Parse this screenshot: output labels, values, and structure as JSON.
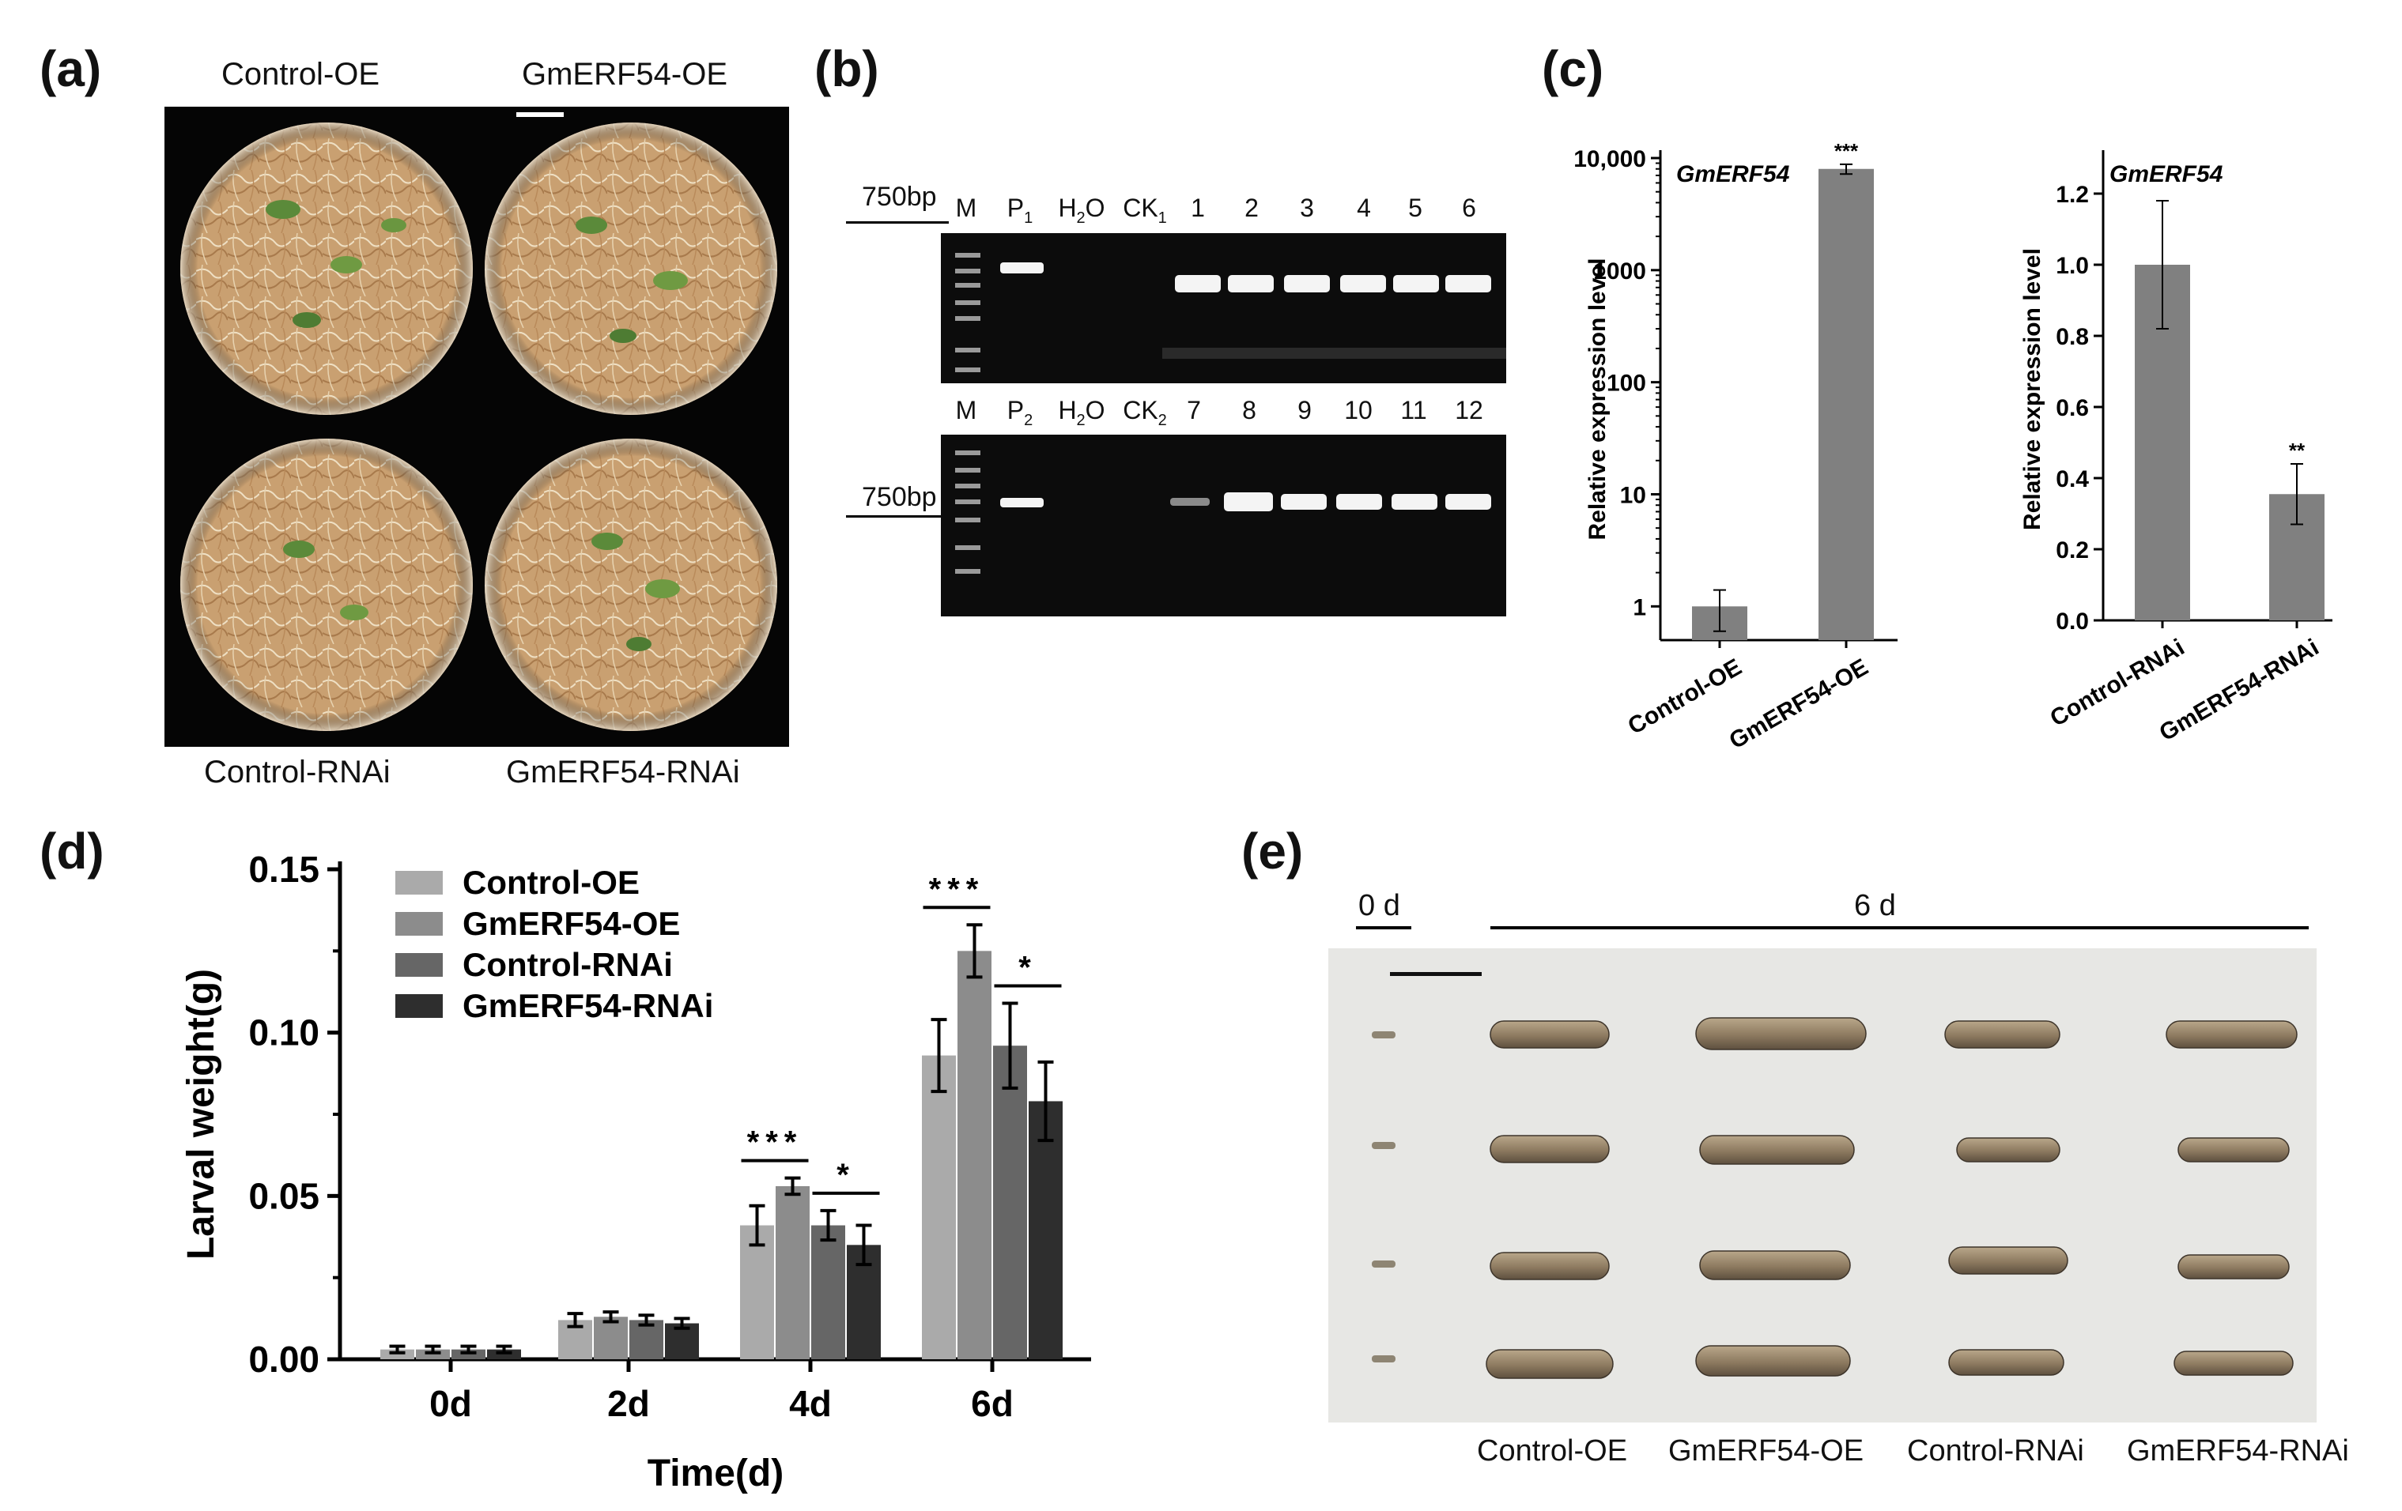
{
  "panel_labels": {
    "a": "(a)",
    "b": "(b)",
    "c": "(c)",
    "d": "(d)",
    "e": "(e)"
  },
  "panel_a": {
    "top_left": "Control-OE",
    "top_right": "GmERF54-OE",
    "bottom_left": "Control-RNAi",
    "bottom_right": "GmERF54-RNAi"
  },
  "panel_b": {
    "marker_label": "750bp",
    "gel1_lanes": [
      "M",
      "P",
      "H",
      "O",
      "CK",
      "1",
      "2",
      "3",
      "4",
      "5",
      "6"
    ],
    "gel1_top": {
      "M": "M",
      "P": "P",
      "P_sub": "1",
      "H2O_H": "H",
      "H2O_sub": "2",
      "H2O_O": "O",
      "CK": "CK",
      "CK_sub": "1",
      "lanes": [
        "1",
        "2",
        "3",
        "4",
        "5",
        "6"
      ]
    },
    "gel2_top": {
      "M": "M",
      "P": "P",
      "P_sub": "2",
      "H2O_H": "H",
      "H2O_sub": "2",
      "H2O_O": "O",
      "CK": "CK",
      "CK_sub": "2",
      "lanes": [
        "7",
        "8",
        "9",
        "10",
        "11",
        "12"
      ]
    }
  },
  "chart_data": [
    {
      "type": "bar",
      "panel": "c-left",
      "title": "GmERF54",
      "ylabel": "Relative expression level",
      "yscale": "log",
      "ylim": [
        0.5,
        10000
      ],
      "yticks": [
        "1",
        "10",
        "100",
        "1000",
        "10,000"
      ],
      "categories": [
        "Control-OE",
        "GmERF54-OE"
      ],
      "values": [
        1,
        8000
      ],
      "errors": [
        [
          0.6,
          1.4
        ],
        [
          7200,
          8800
        ]
      ],
      "significance": [
        "",
        "***"
      ]
    },
    {
      "type": "bar",
      "panel": "c-right",
      "title": "GmERF54",
      "ylabel": "Relative expression level",
      "ylim": [
        0,
        1.3
      ],
      "yticks": [
        "0.0",
        "0.2",
        "0.4",
        "0.6",
        "0.8",
        "1.0",
        "1.2"
      ],
      "categories": [
        "Control-RNAi",
        "GmERF54-RNAi"
      ],
      "values": [
        1.0,
        0.355
      ],
      "errors": [
        0.18,
        0.085
      ],
      "significance": [
        "",
        "**"
      ]
    },
    {
      "type": "bar",
      "panel": "d",
      "xlabel": "Time(d)",
      "ylabel": "Larval weight(g)",
      "ylim": [
        0,
        0.15
      ],
      "yticks": [
        "0.00",
        "0.05",
        "0.10",
        "0.15"
      ],
      "categories": [
        "0d",
        "2d",
        "4d",
        "6d"
      ],
      "series": [
        {
          "name": "Control-OE",
          "color": "#aaaaaa",
          "values": [
            0.003,
            0.012,
            0.041,
            0.093
          ],
          "errors": [
            0.001,
            0.002,
            0.006,
            0.011
          ]
        },
        {
          "name": "GmERF54-OE",
          "color": "#8c8c8c",
          "values": [
            0.003,
            0.013,
            0.053,
            0.125
          ],
          "errors": [
            0.001,
            0.0015,
            0.0025,
            0.008
          ]
        },
        {
          "name": "Control-RNAi",
          "color": "#666666",
          "values": [
            0.003,
            0.012,
            0.041,
            0.096
          ],
          "errors": [
            0.001,
            0.0015,
            0.0045,
            0.013
          ]
        },
        {
          "name": "GmERF54-RNAi",
          "color": "#2e2e2e",
          "values": [
            0.003,
            0.011,
            0.035,
            0.079
          ],
          "errors": [
            0.001,
            0.0015,
            0.006,
            0.012
          ]
        }
      ],
      "annotations": [
        {
          "category": "4d",
          "text": "***",
          "from": 0,
          "to": 1
        },
        {
          "category": "4d",
          "text": "*",
          "from": 2,
          "to": 3
        },
        {
          "category": "6d",
          "text": "***",
          "from": 0,
          "to": 1
        },
        {
          "category": "6d",
          "text": "*",
          "from": 2,
          "to": 3
        }
      ]
    }
  ],
  "panel_e": {
    "day0_label": "0 d",
    "day6_label": "6 d",
    "columns": [
      "Control-OE",
      "GmERF54-OE",
      "Control-RNAi",
      "GmERF54-RNAi"
    ]
  }
}
